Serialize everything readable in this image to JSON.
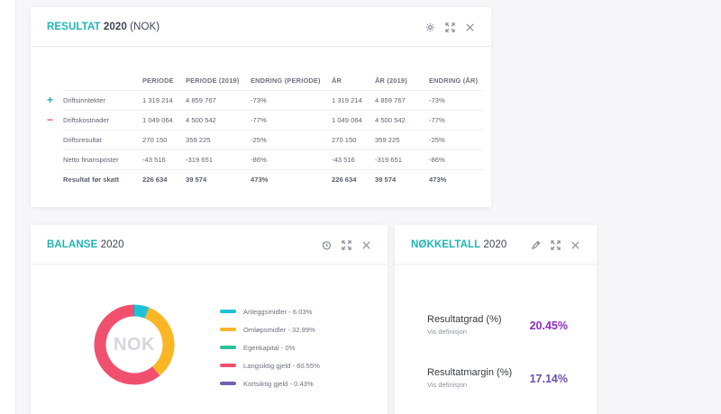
{
  "colors": {
    "accent_teal": "#1fb5b5",
    "plus_blue": "#26a9d8",
    "minus_red": "#e4555d",
    "kpi_purple_1": "#8a2bc9",
    "kpi_purple_2": "#6a4fb3"
  },
  "resultat": {
    "title_accent": "RESULTAT",
    "title_year": "2020",
    "title_suffix": "(NOK)",
    "tools": [
      "gear-icon",
      "expand-icon",
      "close-icon"
    ],
    "columns": [
      "PERIODE",
      "PERIODE (2019)",
      "ENDRING (PERIODE)",
      "ÅR",
      "ÅR (2019)",
      "ENDRING (ÅR)"
    ],
    "rows": [
      {
        "marker": "+",
        "label": "Driftsinntekter",
        "values": [
          "1 319 214",
          "4 859 767",
          "-73%",
          "1 319 214",
          "4 859 767",
          "-73%"
        ]
      },
      {
        "marker": "−",
        "label": "Driftskostnader",
        "values": [
          "1 049 064",
          "4 500 542",
          "-77%",
          "1 049 064",
          "4 500 542",
          "-77%"
        ]
      },
      {
        "marker": "",
        "label": "Driftsresultat",
        "values": [
          "270 150",
          "359 225",
          "-25%",
          "270 150",
          "359 225",
          "-25%"
        ]
      },
      {
        "marker": "",
        "label": "Netto finansposter",
        "values": [
          "-43 516",
          "-319 651",
          "-86%",
          "-43 516",
          "-319 651",
          "-86%"
        ]
      },
      {
        "marker": "",
        "label": "Resultat før skatt",
        "values": [
          "226 634",
          "39 574",
          "473%",
          "226 634",
          "39 574",
          "473%"
        ]
      }
    ]
  },
  "balanse": {
    "title_accent": "BALANSE",
    "title_year": "2020",
    "tools": [
      "history-icon",
      "expand-icon",
      "close-icon"
    ],
    "donut_center": "NOK",
    "legend": [
      {
        "label": "Anleggsmidler - 6.03%",
        "color": "#1fc1d6"
      },
      {
        "label": "Omløpsmidler - 32.99%",
        "color": "#fbb626"
      },
      {
        "label": "Egenkapital - 0%",
        "color": "#2cc197"
      },
      {
        "label": "Langsiktig gjeld - 60.55%",
        "color": "#f0506e"
      },
      {
        "label": "Kortsiktig gjeld - 0.43%",
        "color": "#7460b8"
      }
    ]
  },
  "chart_data": {
    "type": "pie",
    "categories": [
      "Anleggsmidler",
      "Omløpsmidler",
      "Egenkapital",
      "Langsiktig gjeld",
      "Kortsiktig gjeld"
    ],
    "values": [
      6.03,
      32.99,
      0,
      60.55,
      0.43
    ],
    "colors": [
      "#1fc1d6",
      "#fbb626",
      "#2cc197",
      "#f0506e",
      "#7460b8"
    ],
    "title": "BALANSE 2020",
    "center_label": "NOK"
  },
  "nokkeltall": {
    "title_accent": "NØKKELTALL",
    "title_year": "2020",
    "tools": [
      "pencil-icon",
      "expand-icon",
      "close-icon"
    ],
    "kpis": [
      {
        "name": "Resultatgrad (%)",
        "sub": "Vis definisjon",
        "value": "20.45%"
      },
      {
        "name": "Resultatmargin (%)",
        "sub": "Vis definisjon",
        "value": "17.14%"
      }
    ]
  }
}
